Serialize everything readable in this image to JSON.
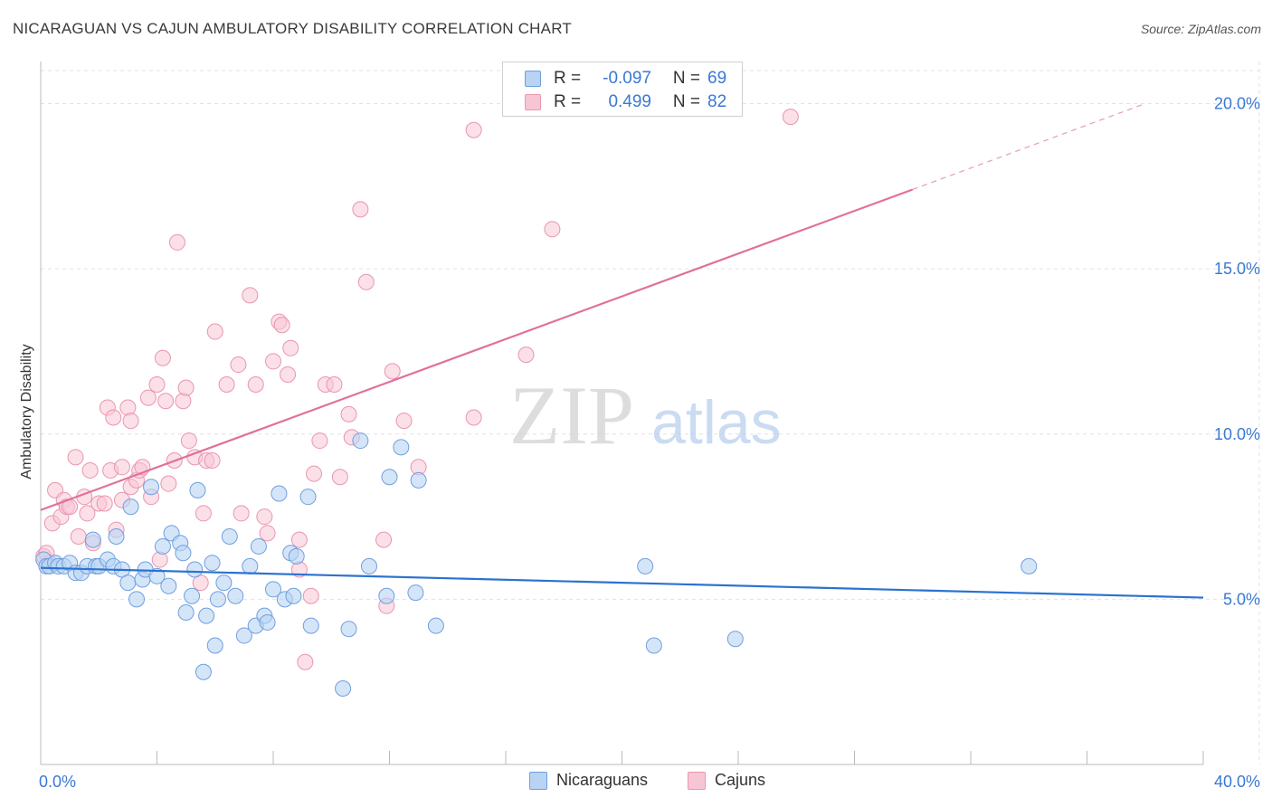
{
  "header": {
    "title": "NICARAGUAN VS CAJUN AMBULATORY DISABILITY CORRELATION CHART",
    "source": "Source: ZipAtlas.com"
  },
  "watermark": {
    "zip": "ZIP",
    "atlas": "atlas"
  },
  "legend_top": {
    "rows": [
      {
        "r_label": "R =",
        "r_value": "-0.097",
        "n_label": "N =",
        "n_value": "69"
      },
      {
        "r_label": "R =",
        "r_value": "0.499",
        "n_label": "N =",
        "n_value": "82"
      }
    ]
  },
  "legend_bottom": {
    "series_a": "Nicaraguans",
    "series_b": "Cajuns"
  },
  "colors": {
    "blue_fill": "#b9d3f3",
    "blue_stroke": "#6f9fdf",
    "blue_line": "#2b72d0",
    "pink_fill": "#f7c6d5",
    "pink_stroke": "#e896b0",
    "pink_line": "#e0709a",
    "tick_text": "#3a78d4",
    "grid": "#e3e3e3"
  },
  "chart_data": {
    "type": "scatter",
    "title": "NICARAGUAN VS CAJUN AMBULATORY DISABILITY CORRELATION CHART",
    "xlabel": "",
    "ylabel": "Ambulatory Disability",
    "xlim": [
      0,
      40
    ],
    "ylim": [
      0,
      21
    ],
    "x_tick_labels": [
      "0.0%",
      "40.0%"
    ],
    "y_ticks": [
      5,
      10,
      15,
      20
    ],
    "y_tick_labels": [
      "5.0%",
      "10.0%",
      "15.0%",
      "20.0%"
    ],
    "series": [
      {
        "name": "Nicaraguans",
        "r": -0.097,
        "n": 69,
        "trend": {
          "x0": 0,
          "y0": 5.95,
          "x1": 40,
          "y1": 5.05
        },
        "points": [
          [
            0.1,
            6.2
          ],
          [
            0.2,
            6.0
          ],
          [
            0.3,
            6.0
          ],
          [
            0.5,
            6.1
          ],
          [
            0.6,
            6.0
          ],
          [
            0.8,
            6.0
          ],
          [
            1.0,
            6.1
          ],
          [
            1.2,
            5.8
          ],
          [
            1.4,
            5.8
          ],
          [
            1.6,
            6.0
          ],
          [
            1.8,
            6.8
          ],
          [
            1.9,
            6.0
          ],
          [
            2.0,
            6.0
          ],
          [
            2.3,
            6.2
          ],
          [
            2.5,
            6.0
          ],
          [
            2.6,
            6.9
          ],
          [
            2.8,
            5.9
          ],
          [
            3.0,
            5.5
          ],
          [
            3.1,
            7.8
          ],
          [
            3.3,
            5.0
          ],
          [
            3.5,
            5.6
          ],
          [
            3.6,
            5.9
          ],
          [
            3.8,
            8.4
          ],
          [
            4.0,
            5.7
          ],
          [
            4.2,
            6.6
          ],
          [
            4.4,
            5.4
          ],
          [
            4.5,
            7.0
          ],
          [
            4.8,
            6.7
          ],
          [
            4.9,
            6.4
          ],
          [
            5.0,
            4.6
          ],
          [
            5.2,
            5.1
          ],
          [
            5.3,
            5.9
          ],
          [
            5.4,
            8.3
          ],
          [
            5.6,
            2.8
          ],
          [
            5.7,
            4.5
          ],
          [
            5.9,
            6.1
          ],
          [
            6.0,
            3.6
          ],
          [
            6.1,
            5.0
          ],
          [
            6.3,
            5.5
          ],
          [
            6.5,
            6.9
          ],
          [
            6.7,
            5.1
          ],
          [
            7.0,
            3.9
          ],
          [
            7.2,
            6.0
          ],
          [
            7.4,
            4.2
          ],
          [
            7.5,
            6.6
          ],
          [
            7.7,
            4.5
          ],
          [
            7.8,
            4.3
          ],
          [
            8.0,
            5.3
          ],
          [
            8.2,
            8.2
          ],
          [
            8.4,
            5.0
          ],
          [
            8.6,
            6.4
          ],
          [
            8.7,
            5.1
          ],
          [
            8.8,
            6.3
          ],
          [
            9.2,
            8.1
          ],
          [
            9.3,
            4.2
          ],
          [
            10.4,
            2.3
          ],
          [
            10.6,
            4.1
          ],
          [
            11.0,
            9.8
          ],
          [
            11.3,
            6.0
          ],
          [
            11.9,
            5.1
          ],
          [
            12.0,
            8.7
          ],
          [
            12.4,
            9.6
          ],
          [
            12.9,
            5.2
          ],
          [
            13.0,
            8.6
          ],
          [
            13.6,
            4.2
          ],
          [
            20.8,
            6.0
          ],
          [
            21.1,
            3.6
          ],
          [
            23.9,
            3.8
          ],
          [
            34.0,
            6.0
          ]
        ]
      },
      {
        "name": "Cajuns",
        "r": 0.499,
        "n": 82,
        "trend": {
          "x0": 0,
          "y0": 7.7,
          "x1": 30,
          "y1": 17.4,
          "dash_x1": 38,
          "dash_y1": 20.0
        },
        "points": [
          [
            0.1,
            6.3
          ],
          [
            0.3,
            6.1
          ],
          [
            0.4,
            7.3
          ],
          [
            0.5,
            8.3
          ],
          [
            0.7,
            7.5
          ],
          [
            0.8,
            8.0
          ],
          [
            0.9,
            7.8
          ],
          [
            1.0,
            7.8
          ],
          [
            1.2,
            9.3
          ],
          [
            1.3,
            6.9
          ],
          [
            1.5,
            8.1
          ],
          [
            1.6,
            7.6
          ],
          [
            1.7,
            8.9
          ],
          [
            1.8,
            6.7
          ],
          [
            2.0,
            7.9
          ],
          [
            2.2,
            7.9
          ],
          [
            2.3,
            10.8
          ],
          [
            2.4,
            8.9
          ],
          [
            2.5,
            10.5
          ],
          [
            2.6,
            7.1
          ],
          [
            2.8,
            8.0
          ],
          [
            2.8,
            9.0
          ],
          [
            3.0,
            10.8
          ],
          [
            3.1,
            10.4
          ],
          [
            3.1,
            8.4
          ],
          [
            3.3,
            8.6
          ],
          [
            3.4,
            8.9
          ],
          [
            3.5,
            9.0
          ],
          [
            3.7,
            11.1
          ],
          [
            3.8,
            8.1
          ],
          [
            4.0,
            11.5
          ],
          [
            4.1,
            6.2
          ],
          [
            4.2,
            12.3
          ],
          [
            4.3,
            11.0
          ],
          [
            4.4,
            8.5
          ],
          [
            4.6,
            9.2
          ],
          [
            4.7,
            15.8
          ],
          [
            4.9,
            11.0
          ],
          [
            5.0,
            11.4
          ],
          [
            5.1,
            9.8
          ],
          [
            5.3,
            9.3
          ],
          [
            5.5,
            5.5
          ],
          [
            5.6,
            7.6
          ],
          [
            5.7,
            9.2
          ],
          [
            5.9,
            9.2
          ],
          [
            6.0,
            13.1
          ],
          [
            6.4,
            11.5
          ],
          [
            6.8,
            12.1
          ],
          [
            6.9,
            7.6
          ],
          [
            7.2,
            14.2
          ],
          [
            7.4,
            11.5
          ],
          [
            7.7,
            7.5
          ],
          [
            7.8,
            7.0
          ],
          [
            8.0,
            12.2
          ],
          [
            8.2,
            13.4
          ],
          [
            8.3,
            13.3
          ],
          [
            8.5,
            11.8
          ],
          [
            8.6,
            12.6
          ],
          [
            8.9,
            6.8
          ],
          [
            8.9,
            5.9
          ],
          [
            9.1,
            3.1
          ],
          [
            9.3,
            5.1
          ],
          [
            9.4,
            8.8
          ],
          [
            9.6,
            9.8
          ],
          [
            9.8,
            11.5
          ],
          [
            10.1,
            11.5
          ],
          [
            10.3,
            8.7
          ],
          [
            10.6,
            10.6
          ],
          [
            10.7,
            9.9
          ],
          [
            11.0,
            16.8
          ],
          [
            11.2,
            14.6
          ],
          [
            11.8,
            6.8
          ],
          [
            11.9,
            4.8
          ],
          [
            12.1,
            11.9
          ],
          [
            12.5,
            10.4
          ],
          [
            13.0,
            9.0
          ],
          [
            14.9,
            19.2
          ],
          [
            14.9,
            10.5
          ],
          [
            16.7,
            12.4
          ],
          [
            17.6,
            16.2
          ],
          [
            25.8,
            19.6
          ],
          [
            0.2,
            6.4
          ]
        ]
      }
    ]
  }
}
